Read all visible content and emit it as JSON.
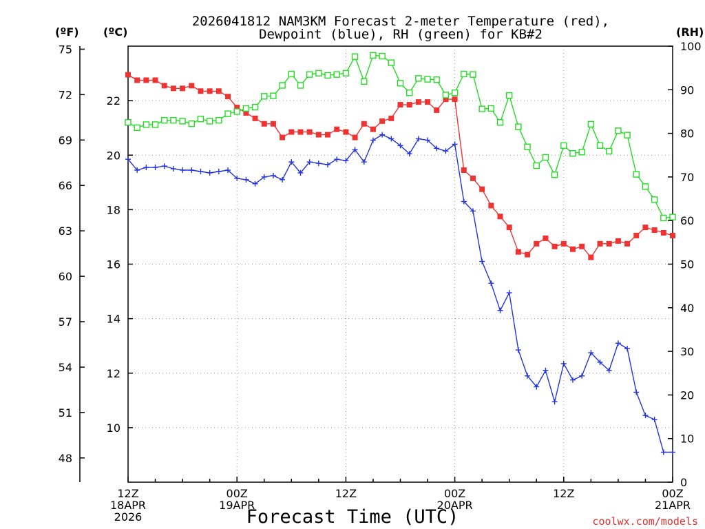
{
  "chart_data": {
    "type": "line",
    "title_line1": "2026041812 NAM3KM Forecast 2-meter Temperature (red),",
    "title_line2": "Dewpoint (blue), RH (green) for KB#2",
    "xlabel": "Forecast Time (UTC)",
    "ylabel_left_f": "(ºF)",
    "ylabel_left_c": "(ºC)",
    "ylabel_right": "(RH)",
    "credit": "coolwx.com/models",
    "x_range_hours": [
      0,
      60
    ],
    "c_range": [
      8,
      24
    ],
    "f_range": [
      46.4,
      75.2
    ],
    "rh_range": [
      0,
      100
    ],
    "x_ticks": [
      {
        "h": 0,
        "line1": "12Z",
        "line2": "18APR",
        "line3": "2026"
      },
      {
        "h": 12,
        "line1": "00Z",
        "line2": "19APR",
        "line3": ""
      },
      {
        "h": 24,
        "line1": "12Z",
        "line2": "",
        "line3": ""
      },
      {
        "h": 36,
        "line1": "00Z",
        "line2": "20APR",
        "line3": ""
      },
      {
        "h": 48,
        "line1": "12Z",
        "line2": "",
        "line3": ""
      },
      {
        "h": 60,
        "line1": "00Z",
        "line2": "21APR",
        "line3": ""
      }
    ],
    "c_ticks": [
      10,
      12,
      14,
      16,
      18,
      20,
      22
    ],
    "f_ticks": [
      48,
      51,
      54,
      57,
      60,
      63,
      66,
      69,
      72,
      75
    ],
    "rh_ticks": [
      0,
      10,
      20,
      30,
      40,
      50,
      60,
      70,
      80,
      90,
      100
    ],
    "series": [
      {
        "name": "Temperature",
        "units": "C",
        "color": "#ee3333",
        "marker": "filled-square",
        "x": [
          0,
          1,
          2,
          3,
          4,
          5,
          6,
          7,
          8,
          9,
          10,
          11,
          12,
          13,
          14,
          15,
          16,
          17,
          18,
          19,
          20,
          21,
          22,
          23,
          24,
          25,
          26,
          27,
          28,
          29,
          30,
          31,
          32,
          33,
          34,
          35,
          36,
          37,
          38,
          39,
          40,
          41,
          42,
          43,
          44,
          45,
          46,
          47,
          48,
          49,
          50,
          51,
          52,
          53,
          54,
          55,
          56,
          57,
          58,
          59,
          60
        ],
        "values": [
          22.95,
          22.75,
          22.75,
          22.75,
          22.55,
          22.45,
          22.45,
          22.55,
          22.35,
          22.35,
          22.35,
          22.15,
          21.75,
          21.55,
          21.35,
          21.15,
          21.15,
          20.65,
          20.85,
          20.85,
          20.85,
          20.75,
          20.75,
          20.95,
          20.85,
          20.65,
          21.15,
          20.95,
          21.25,
          21.35,
          21.85,
          21.85,
          21.95,
          21.95,
          21.65,
          22.05,
          22.05,
          19.45,
          19.15,
          18.75,
          18.15,
          17.75,
          17.35,
          16.45,
          16.35,
          16.75,
          16.95,
          16.65,
          16.75,
          16.55,
          16.65,
          16.25,
          16.75,
          16.75,
          16.85,
          16.75,
          17.05,
          17.35,
          17.25,
          17.15,
          17.05
        ]
      },
      {
        "name": "Dewpoint",
        "units": "C",
        "color": "#2233dd",
        "marker": "plus",
        "x": [
          0,
          1,
          2,
          3,
          4,
          5,
          6,
          7,
          8,
          9,
          10,
          11,
          12,
          13,
          14,
          15,
          16,
          17,
          18,
          19,
          20,
          21,
          22,
          23,
          24,
          25,
          26,
          27,
          28,
          29,
          30,
          31,
          32,
          33,
          34,
          35,
          36,
          37,
          38,
          39,
          40,
          41,
          42,
          43,
          44,
          45,
          46,
          47,
          48,
          49,
          50,
          51,
          52,
          53,
          54,
          55,
          56,
          57,
          58,
          59,
          60
        ],
        "values": [
          19.85,
          19.45,
          19.55,
          19.55,
          19.6,
          19.5,
          19.45,
          19.45,
          19.4,
          19.35,
          19.4,
          19.45,
          19.15,
          19.1,
          18.95,
          19.2,
          19.25,
          19.1,
          19.75,
          19.35,
          19.75,
          19.7,
          19.65,
          19.85,
          19.8,
          20.2,
          19.75,
          20.55,
          20.75,
          20.6,
          20.35,
          20.05,
          20.6,
          20.55,
          20.25,
          20.15,
          20.4,
          18.3,
          17.95,
          16.1,
          15.3,
          14.3,
          14.95,
          12.85,
          11.9,
          11.5,
          12.1,
          10.95,
          12.35,
          11.75,
          11.9,
          12.75,
          12.4,
          12.1,
          13.1,
          12.9,
          11.3,
          10.45,
          10.3,
          9.1,
          9.1
        ]
      },
      {
        "name": "RH",
        "units": "%",
        "color": "#22dd22",
        "marker": "open-square",
        "x": [
          0,
          1,
          2,
          3,
          4,
          5,
          6,
          7,
          8,
          9,
          10,
          11,
          12,
          13,
          14,
          15,
          16,
          17,
          18,
          19,
          20,
          21,
          22,
          23,
          24,
          25,
          26,
          27,
          28,
          29,
          30,
          31,
          32,
          33,
          34,
          35,
          36,
          37,
          38,
          39,
          40,
          41,
          42,
          43,
          44,
          45,
          46,
          47,
          48,
          49,
          50,
          51,
          52,
          53,
          54,
          55,
          56,
          57,
          58,
          59,
          60
        ],
        "values": [
          82.5,
          81.3,
          82.0,
          82.0,
          83.0,
          83.0,
          82.8,
          82.2,
          83.3,
          82.8,
          83.0,
          84.5,
          85.0,
          85.7,
          86.0,
          88.5,
          88.6,
          91.0,
          93.6,
          91.0,
          93.5,
          93.8,
          93.3,
          93.5,
          93.8,
          97.6,
          91.9,
          97.9,
          97.7,
          96.2,
          91.5,
          89.3,
          92.6,
          92.4,
          92.3,
          88.8,
          89.3,
          93.6,
          93.5,
          85.6,
          85.7,
          82.5,
          88.7,
          81.5,
          76.9,
          72.6,
          74.5,
          70.5,
          77.2,
          75.4,
          75.7,
          82.1,
          77.2,
          75.9,
          80.6,
          79.6,
          70.6,
          67.8,
          64.8,
          60.6,
          60.8
        ]
      }
    ]
  }
}
